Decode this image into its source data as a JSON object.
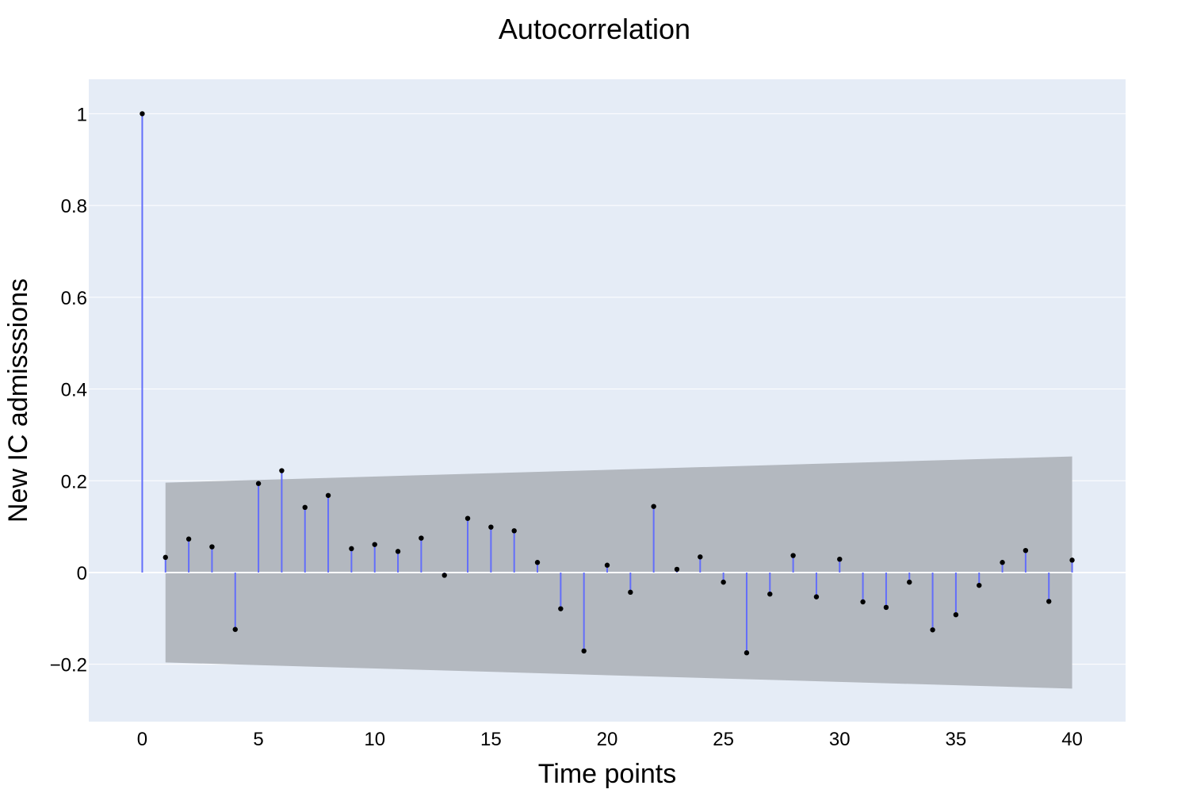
{
  "chart_data": {
    "type": "stem",
    "title": "Autocorrelation",
    "xlabel": "Time points",
    "ylabel": "New IC admisssions",
    "xlim": [
      -2.3,
      42.3
    ],
    "ylim": [
      -0.325,
      1.075
    ],
    "xticks": [
      0,
      5,
      10,
      15,
      20,
      25,
      30,
      35,
      40
    ],
    "xtick_labels": [
      "0",
      "5",
      "10",
      "15",
      "20",
      "25",
      "30",
      "35",
      "40"
    ],
    "yticks": [
      -0.2,
      0,
      0.2,
      0.4,
      0.6,
      0.8,
      1
    ],
    "ytick_labels": [
      "−0.2",
      "0",
      "0.2",
      "0.4",
      "0.6",
      "0.8",
      "1"
    ],
    "grid": true,
    "colors": {
      "plot_bg": "#e5ecf6",
      "stem": "#636efa",
      "marker": "#000000",
      "band": "#b3b8bf",
      "grid": "#ffffff"
    },
    "lags": [
      0,
      1,
      2,
      3,
      4,
      5,
      6,
      7,
      8,
      9,
      10,
      11,
      12,
      13,
      14,
      15,
      16,
      17,
      18,
      19,
      20,
      21,
      22,
      23,
      24,
      25,
      26,
      27,
      28,
      29,
      30,
      31,
      32,
      33,
      34,
      35,
      36,
      37,
      38,
      39,
      40
    ],
    "acf": [
      1.0,
      0.033,
      0.073,
      0.056,
      -0.124,
      0.194,
      0.222,
      0.142,
      0.168,
      0.052,
      0.061,
      0.046,
      0.075,
      -0.006,
      0.118,
      0.099,
      0.091,
      0.022,
      -0.079,
      -0.171,
      0.016,
      -0.043,
      0.144,
      0.007,
      0.034,
      -0.021,
      -0.175,
      -0.047,
      0.037,
      -0.053,
      0.029,
      -0.064,
      -0.076,
      -0.021,
      -0.125,
      -0.092,
      -0.028,
      0.022,
      0.048,
      -0.063,
      0.027
    ],
    "confidence_band": {
      "x_start": 1,
      "x_end": 40,
      "upper_start": 0.196,
      "upper_end": 0.253,
      "lower_start": -0.196,
      "lower_end": -0.253
    }
  }
}
